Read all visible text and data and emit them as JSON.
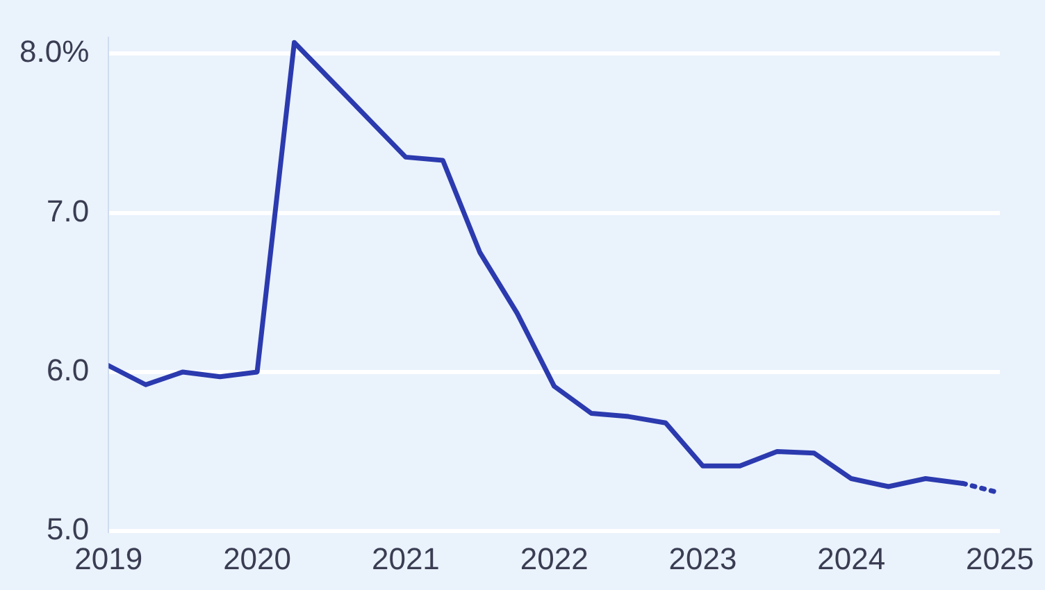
{
  "chart_data": {
    "type": "line",
    "xlim": [
      2019,
      2025
    ],
    "xticks": [
      2019,
      2020,
      2021,
      2022,
      2023,
      2024,
      2025
    ],
    "ylim": [
      5,
      8.1
    ],
    "yticks": [
      {
        "value": 5,
        "label": "5.0"
      },
      {
        "value": 6,
        "label": "6.0"
      },
      {
        "value": 7,
        "label": "7.0"
      },
      {
        "value": 8,
        "label": "8.0%"
      }
    ],
    "grid": "y",
    "legend": false,
    "marker": "none",
    "series": [
      {
        "color": "#2b3aae",
        "line_style": "solid",
        "x": [
          2019,
          2019.25,
          2019.5,
          2019.75,
          2020,
          2020.25,
          2020.5,
          2020.75,
          2021,
          2021.25,
          2021.5,
          2021.75,
          2022,
          2022.25,
          2022.5,
          2022.75,
          2023,
          2023.25,
          2023.5,
          2023.75,
          2024,
          2024.25,
          2024.5,
          2024.75
        ],
        "values": [
          6.04,
          5.92,
          6.0,
          5.97,
          6.0,
          8.07,
          7.83,
          7.59,
          7.35,
          7.33,
          6.75,
          6.37,
          5.91,
          5.74,
          5.72,
          5.68,
          5.41,
          5.41,
          5.5,
          5.49,
          5.33,
          5.28,
          5.33,
          5.3
        ]
      },
      {
        "color": "#2b3aae",
        "line_style": "dotted",
        "x": [
          2024.75,
          2025
        ],
        "values": [
          5.3,
          5.24
        ]
      }
    ]
  }
}
